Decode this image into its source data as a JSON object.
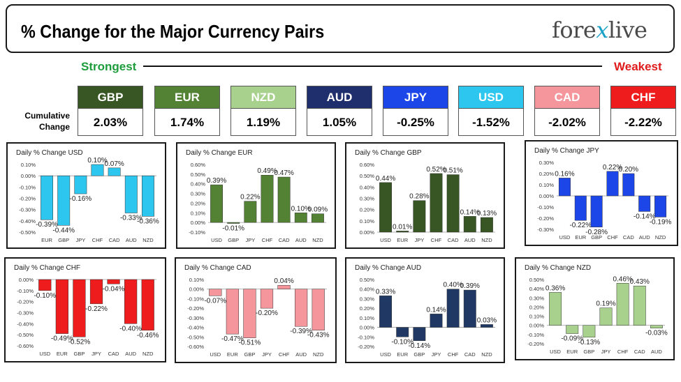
{
  "header": {
    "title": "% Change for the Major Currency Pairs",
    "logo_prefix": "fore",
    "logo_x": "x",
    "logo_suffix": "live"
  },
  "ranking": {
    "strongest_label": "Strongest",
    "weakest_label": "Weakest",
    "cumulative_label_line1": "Cumulative",
    "cumulative_label_line2": "Change",
    "tiles": [
      {
        "currency": "GBP",
        "value": "2.03%",
        "color": "#375623"
      },
      {
        "currency": "EUR",
        "value": "1.74%",
        "color": "#548235"
      },
      {
        "currency": "NZD",
        "value": "1.19%",
        "color": "#a9d18e"
      },
      {
        "currency": "AUD",
        "value": "1.05%",
        "color": "#1f2f6e"
      },
      {
        "currency": "JPY",
        "value": "-0.25%",
        "color": "#1c46e8"
      },
      {
        "currency": "USD",
        "value": "-1.52%",
        "color": "#2cc6ee"
      },
      {
        "currency": "CAD",
        "value": "-2.02%",
        "color": "#f4969c"
      },
      {
        "currency": "CHF",
        "value": "-2.22%",
        "color": "#ee1c1c"
      }
    ]
  },
  "chart_data": [
    {
      "type": "bar",
      "title": "Daily % Change USD",
      "categories": [
        "EUR",
        "GBP",
        "JPY",
        "CHF",
        "CAD",
        "AUD",
        "NZD"
      ],
      "values": [
        -0.39,
        -0.44,
        -0.16,
        0.1,
        0.07,
        -0.33,
        -0.36
      ],
      "labels": [
        "-0.39%",
        "-0.44%",
        "-0.16%",
        "0.10%",
        "0.07%",
        "-0.33%",
        "-0.36%"
      ],
      "yticks": [
        "0.10%",
        "0.00%",
        "-0.10%",
        "-0.20%",
        "-0.30%",
        "-0.40%",
        "-0.50%"
      ],
      "ylim": [
        -0.5,
        0.1
      ],
      "color": "#2cc6ee"
    },
    {
      "type": "bar",
      "title": "Daily % Change EUR",
      "categories": [
        "USD",
        "GBP",
        "JPY",
        "CHF",
        "CAD",
        "AUD",
        "NZD"
      ],
      "values": [
        0.39,
        -0.01,
        0.22,
        0.49,
        0.47,
        0.1,
        0.09
      ],
      "labels": [
        "0.39%",
        "-0.01%",
        "0.22%",
        "0.49%",
        "0.47%",
        "0.10%",
        "0.09%"
      ],
      "yticks": [
        "0.60%",
        "0.50%",
        "0.40%",
        "0.30%",
        "0.20%",
        "0.10%",
        "0.00%",
        "-0.10%"
      ],
      "ylim": [
        -0.1,
        0.6
      ],
      "color": "#548235"
    },
    {
      "type": "bar",
      "title": "Daily % Change GBP",
      "categories": [
        "USD",
        "EUR",
        "JPY",
        "CHF",
        "CAD",
        "AUD",
        "NZD"
      ],
      "values": [
        0.44,
        0.01,
        0.28,
        0.52,
        0.51,
        0.14,
        0.13
      ],
      "labels": [
        "0.44%",
        "0.01%",
        "0.28%",
        "0.52%",
        "0.51%",
        "0.14%",
        "0.13%"
      ],
      "yticks": [
        "0.60%",
        "0.50%",
        "0.40%",
        "0.30%",
        "0.20%",
        "0.10%",
        "0.00%"
      ],
      "ylim": [
        0,
        0.6
      ],
      "color": "#375623"
    },
    {
      "type": "bar",
      "title": "Daily % Change JPY",
      "categories": [
        "USD",
        "EUR",
        "GBP",
        "CHF",
        "CAD",
        "AUD",
        "NZD"
      ],
      "values": [
        0.16,
        -0.22,
        -0.28,
        0.22,
        0.2,
        -0.14,
        -0.19
      ],
      "labels": [
        "0.16%",
        "-0.22%",
        "-0.28%",
        "0.22%",
        "0.20%",
        "-0.14%",
        "-0.19%"
      ],
      "yticks": [
        "0.30%",
        "0.20%",
        "0.10%",
        "0.00%",
        "-0.10%",
        "-0.20%",
        "-0.30%"
      ],
      "ylim": [
        -0.3,
        0.3
      ],
      "color": "#1c46e8"
    },
    {
      "type": "bar",
      "title": "Daily % Change CHF",
      "categories": [
        "USD",
        "EUR",
        "GBP",
        "JPY",
        "CAD",
        "AUD",
        "NZD"
      ],
      "values": [
        -0.1,
        -0.49,
        -0.52,
        -0.22,
        -0.04,
        -0.4,
        -0.46
      ],
      "labels": [
        "-0.10%",
        "-0.49%",
        "-0.52%",
        "-0.22%",
        "-0.04%",
        "-0.40%",
        "-0.46%"
      ],
      "yticks": [
        "0.00%",
        "-0.10%",
        "-0.20%",
        "-0.30%",
        "-0.40%",
        "-0.50%",
        "-0.60%"
      ],
      "ylim": [
        -0.6,
        0
      ],
      "color": "#ee1c1c"
    },
    {
      "type": "bar",
      "title": "Daily % Change CAD",
      "categories": [
        "USD",
        "EUR",
        "GBP",
        "JPY",
        "CHF",
        "AUD",
        "NZD"
      ],
      "values": [
        -0.07,
        -0.47,
        -0.51,
        -0.2,
        0.04,
        -0.39,
        -0.43
      ],
      "labels": [
        "-0.07%",
        "-0.47%",
        "-0.51%",
        "-0.20%",
        "0.04%",
        "-0.39%",
        "-0.43%"
      ],
      "yticks": [
        "0.10%",
        "0.00%",
        "-0.10%",
        "-0.20%",
        "-0.30%",
        "-0.40%",
        "-0.50%",
        "-0.60%"
      ],
      "ylim": [
        -0.6,
        0.1
      ],
      "color": "#f4969c"
    },
    {
      "type": "bar",
      "title": "Daily % Change AUD",
      "categories": [
        "USD",
        "EUR",
        "GBP",
        "JPY",
        "CHF",
        "CAD",
        "NZD"
      ],
      "values": [
        0.33,
        -0.1,
        -0.14,
        0.14,
        0.4,
        0.39,
        0.03
      ],
      "labels": [
        "0.33%",
        "-0.10%",
        "-0.14%",
        "0.14%",
        "0.40%",
        "0.39%",
        "0.03%"
      ],
      "yticks": [
        "0.50%",
        "0.40%",
        "0.30%",
        "0.20%",
        "0.10%",
        "0.00%",
        "-0.10%",
        "-0.20%"
      ],
      "ylim": [
        -0.2,
        0.5
      ],
      "color": "#1f3864"
    },
    {
      "type": "bar",
      "title": "Daily % Change NZD",
      "categories": [
        "USD",
        "EUR",
        "GBP",
        "JPY",
        "CHF",
        "CAD",
        "AUD"
      ],
      "values": [
        0.36,
        -0.09,
        -0.13,
        0.19,
        0.46,
        0.43,
        -0.03
      ],
      "labels": [
        "0.36%",
        "-0.09%",
        "-0.13%",
        "0.19%",
        "0.46%",
        "0.43%",
        "-0.03%"
      ],
      "yticks": [
        "0.50%",
        "0.40%",
        "0.30%",
        "0.20%",
        "0.10%",
        "0.00%",
        "-0.10%",
        "-0.20%"
      ],
      "ylim": [
        -0.2,
        0.5
      ],
      "color": "#a9d18e"
    }
  ]
}
